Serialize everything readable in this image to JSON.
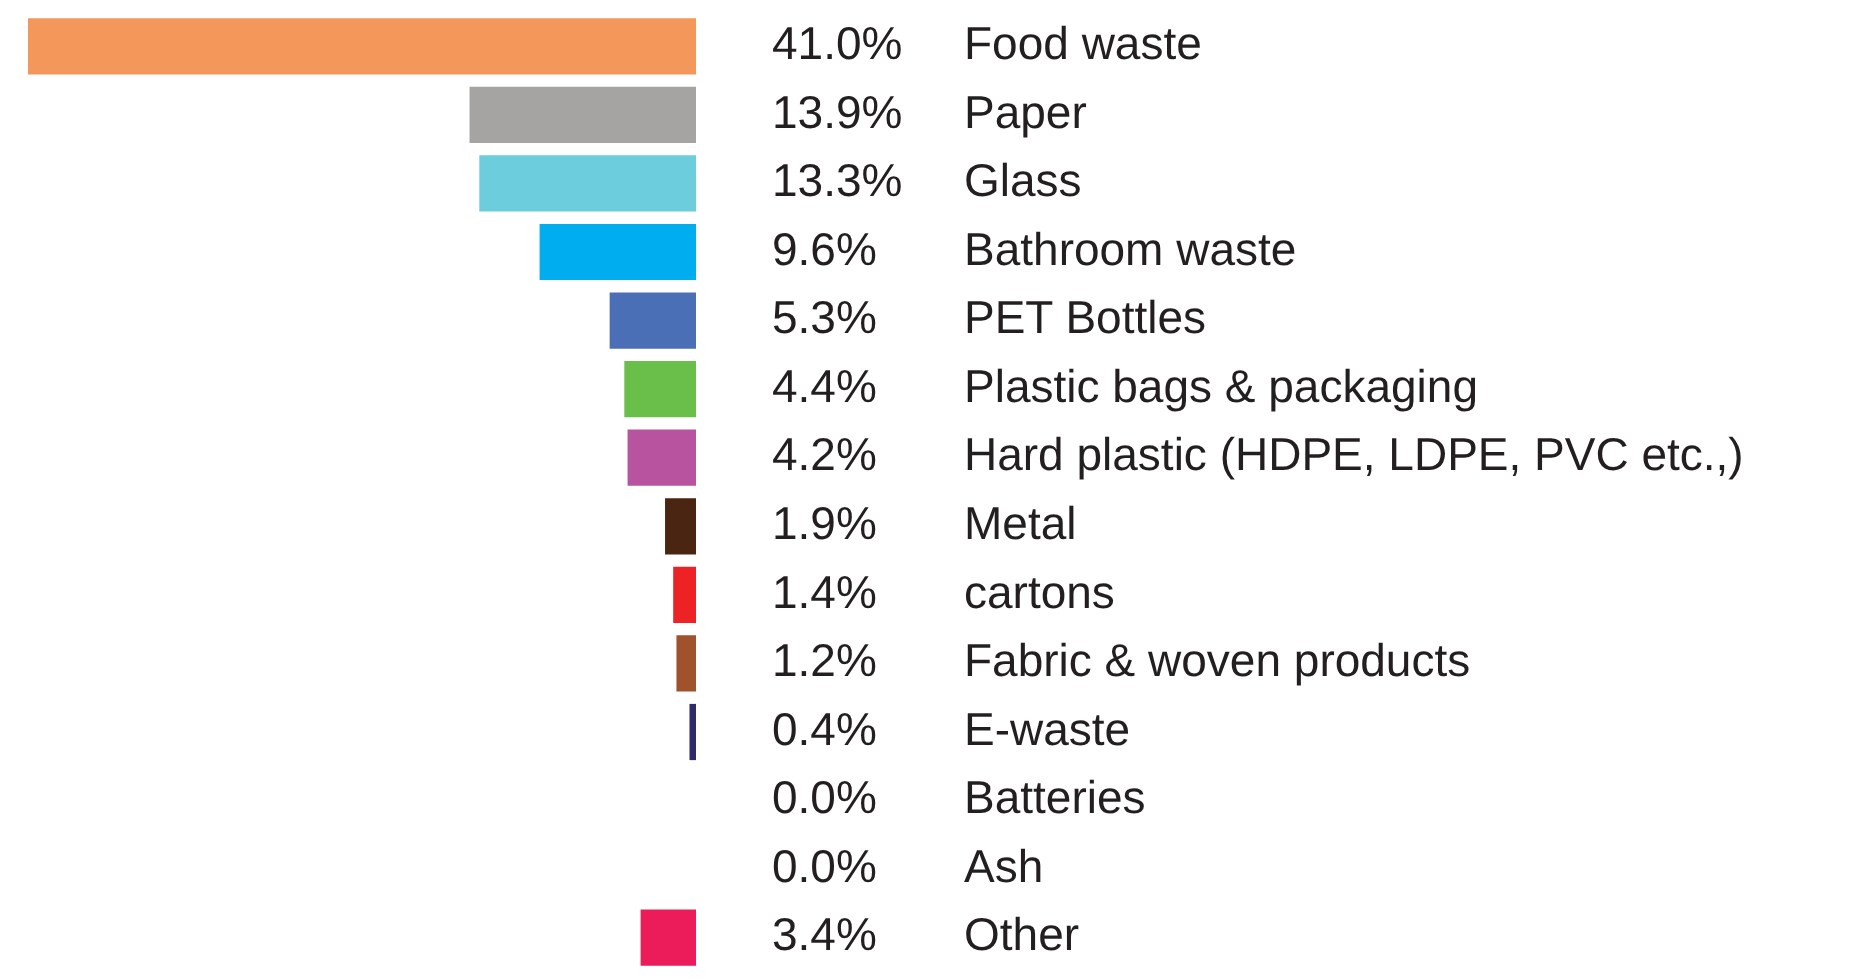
{
  "chart_data": {
    "type": "bar",
    "orientation": "horizontal",
    "categories": [
      "Food waste",
      "Paper",
      "Glass",
      "Bathroom waste",
      "PET Bottles",
      "Plastic bags & packaging",
      "Hard plastic (HDPE, LDPE, PVC etc.,)",
      "Metal",
      "cartons",
      "Fabric & woven products",
      "E-waste",
      "Batteries",
      "Ash",
      "Other"
    ],
    "values": [
      41.0,
      13.9,
      13.3,
      9.6,
      5.3,
      4.4,
      4.2,
      1.9,
      1.4,
      1.2,
      0.4,
      0.0,
      0.0,
      3.4
    ],
    "value_labels": [
      "41.0%",
      "13.9%",
      "13.3%",
      "9.6%",
      "5.3%",
      "4.4%",
      "4.2%",
      "1.9%",
      "1.4%",
      "1.2%",
      "0.4%",
      "0.0%",
      "0.0%",
      "3.4%"
    ],
    "colors": [
      "#f4975a",
      "#a5a4a3",
      "#6ccddc",
      "#00aeef",
      "#4a6fb6",
      "#6abf4b",
      "#b853a0",
      "#4a2511",
      "#ed2224",
      "#a0522d",
      "#2e2a6b",
      "#4a8b6f",
      "#7fb2e0",
      "#ec1c5b"
    ],
    "legend": false,
    "tick_labels": "y"
  }
}
